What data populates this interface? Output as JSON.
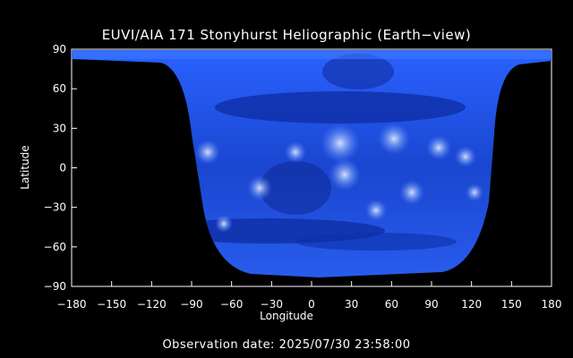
{
  "title": "EUVI/AIA 171 Stonyhurst Heliographic (Earth−view)",
  "xlabel": "Longitude",
  "ylabel": "Latitude",
  "observation": "Observation date: 2025/07/30 23:58:00",
  "axes": {
    "x_ticks": [
      "−180",
      "−150",
      "−120",
      "−90",
      "−60",
      "−30",
      "0",
      "30",
      "60",
      "90",
      "120",
      "150",
      "180"
    ],
    "y_ticks": [
      "90",
      "60",
      "30",
      "0",
      "−30",
      "−60",
      "−90"
    ],
    "x_range": [
      -180,
      180
    ],
    "y_range": [
      -90,
      90
    ]
  },
  "colors": {
    "background": "#000000",
    "map_base": "#1f4fd8",
    "map_dark": "#0b1f7a",
    "map_bright": "#cfe3ff"
  }
}
